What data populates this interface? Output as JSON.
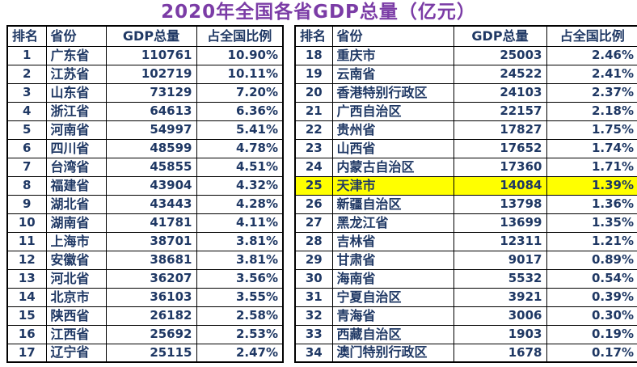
{
  "title": {
    "text": "2020年全国各省GDP总量（亿元）"
  },
  "colors": {
    "title": "#7B3CA6",
    "text": "#1F3864",
    "border": "#000000",
    "highlight": "#FFFF00",
    "background": "#FFFFFF"
  },
  "columns": [
    "排名",
    "省份",
    "GDP总量",
    "占全国比例"
  ],
  "tables": [
    {
      "name": "ranks-1-17",
      "highlight_rank": null,
      "rows": [
        [
          "1",
          "广东省",
          "110761",
          "10.90%"
        ],
        [
          "2",
          "江苏省",
          "102719",
          "10.11%"
        ],
        [
          "3",
          "山东省",
          "73129",
          "7.20%"
        ],
        [
          "4",
          "浙江省",
          "64613",
          "6.36%"
        ],
        [
          "5",
          "河南省",
          "54997",
          "5.41%"
        ],
        [
          "6",
          "四川省",
          "48599",
          "4.78%"
        ],
        [
          "7",
          "台湾省",
          "45855",
          "4.51%"
        ],
        [
          "8",
          "福建省",
          "43904",
          "4.32%"
        ],
        [
          "9",
          "湖北省",
          "43443",
          "4.28%"
        ],
        [
          "10",
          "湖南省",
          "41781",
          "4.11%"
        ],
        [
          "11",
          "上海市",
          "38701",
          "3.81%"
        ],
        [
          "12",
          "安徽省",
          "38681",
          "3.81%"
        ],
        [
          "13",
          "河北省",
          "36207",
          "3.56%"
        ],
        [
          "14",
          "北京市",
          "36103",
          "3.55%"
        ],
        [
          "15",
          "陕西省",
          "26182",
          "2.58%"
        ],
        [
          "16",
          "江西省",
          "25692",
          "2.53%"
        ],
        [
          "17",
          "辽宁省",
          "25115",
          "2.47%"
        ]
      ]
    },
    {
      "name": "ranks-18-34",
      "highlight_rank": "25",
      "rows": [
        [
          "18",
          "重庆市",
          "25003",
          "2.46%"
        ],
        [
          "19",
          "云南省",
          "24522",
          "2.41%"
        ],
        [
          "20",
          "香港特别行政区",
          "24103",
          "2.37%"
        ],
        [
          "21",
          "广西自治区",
          "22157",
          "2.18%"
        ],
        [
          "22",
          "贵州省",
          "17827",
          "1.75%"
        ],
        [
          "23",
          "山西省",
          "17652",
          "1.74%"
        ],
        [
          "24",
          "内蒙古自治区",
          "17360",
          "1.71%"
        ],
        [
          "25",
          "天津市",
          "14084",
          "1.39%"
        ],
        [
          "26",
          "新疆自治区",
          "13798",
          "1.36%"
        ],
        [
          "27",
          "黑龙江省",
          "13699",
          "1.35%"
        ],
        [
          "28",
          "吉林省",
          "12311",
          "1.21%"
        ],
        [
          "29",
          "甘肃省",
          "9017",
          "0.89%"
        ],
        [
          "30",
          "海南省",
          "5532",
          "0.54%"
        ],
        [
          "31",
          "宁夏自治区",
          "3921",
          "0.39%"
        ],
        [
          "32",
          "青海省",
          "3006",
          "0.30%"
        ],
        [
          "33",
          "西藏自治区",
          "1903",
          "0.19%"
        ],
        [
          "34",
          "澳门特别行政区",
          "1678",
          "0.17%"
        ]
      ]
    }
  ],
  "chart_data": {
    "type": "table",
    "title": "2020年全国各省GDP总量（亿元）",
    "columns": [
      "排名",
      "省份",
      "GDP总量",
      "占全国比例"
    ],
    "highlighted_row": {
      "rank": 25,
      "province": "天津市",
      "gdp": 14084,
      "share": "1.39%"
    },
    "rows": [
      [
        1,
        "广东省",
        110761,
        "10.90%"
      ],
      [
        2,
        "江苏省",
        102719,
        "10.11%"
      ],
      [
        3,
        "山东省",
        73129,
        "7.20%"
      ],
      [
        4,
        "浙江省",
        64613,
        "6.36%"
      ],
      [
        5,
        "河南省",
        54997,
        "5.41%"
      ],
      [
        6,
        "四川省",
        48599,
        "4.78%"
      ],
      [
        7,
        "台湾省",
        45855,
        "4.51%"
      ],
      [
        8,
        "福建省",
        43904,
        "4.32%"
      ],
      [
        9,
        "湖北省",
        43443,
        "4.28%"
      ],
      [
        10,
        "湖南省",
        41781,
        "4.11%"
      ],
      [
        11,
        "上海市",
        38701,
        "3.81%"
      ],
      [
        12,
        "安徽省",
        38681,
        "3.81%"
      ],
      [
        13,
        "河北省",
        36207,
        "3.56%"
      ],
      [
        14,
        "北京市",
        36103,
        "3.55%"
      ],
      [
        15,
        "陕西省",
        26182,
        "2.58%"
      ],
      [
        16,
        "江西省",
        25692,
        "2.53%"
      ],
      [
        17,
        "辽宁省",
        25115,
        "2.47%"
      ],
      [
        18,
        "重庆市",
        25003,
        "2.46%"
      ],
      [
        19,
        "云南省",
        24522,
        "2.41%"
      ],
      [
        20,
        "香港特别行政区",
        24103,
        "2.37%"
      ],
      [
        21,
        "广西自治区",
        22157,
        "2.18%"
      ],
      [
        22,
        "贵州省",
        17827,
        "1.75%"
      ],
      [
        23,
        "山西省",
        17652,
        "1.74%"
      ],
      [
        24,
        "内蒙古自治区",
        17360,
        "1.71%"
      ],
      [
        25,
        "天津市",
        14084,
        "1.39%"
      ],
      [
        26,
        "新疆自治区",
        13798,
        "1.36%"
      ],
      [
        27,
        "黑龙江省",
        13699,
        "1.35%"
      ],
      [
        28,
        "吉林省",
        12311,
        "1.21%"
      ],
      [
        29,
        "甘肃省",
        9017,
        "0.89%"
      ],
      [
        30,
        "海南省",
        5532,
        "0.54%"
      ],
      [
        31,
        "宁夏自治区",
        3921,
        "0.39%"
      ],
      [
        32,
        "青海省",
        3006,
        "0.30%"
      ],
      [
        33,
        "西藏自治区",
        1903,
        "0.19%"
      ],
      [
        34,
        "澳门特别行政区",
        1678,
        "0.17%"
      ]
    ]
  }
}
